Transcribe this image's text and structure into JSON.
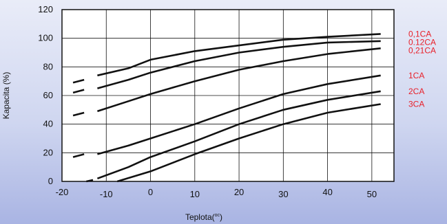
{
  "chart_data": {
    "type": "line",
    "xlabel": "Teplota(",
    "xlabel_sup": "oc",
    "xlabel_close": ")",
    "ylabel": "Kapacita (%)",
    "xlim": [
      -20,
      55
    ],
    "ylim": [
      0,
      120
    ],
    "x_ticks": [
      -20,
      -10,
      0,
      10,
      20,
      30,
      40,
      50
    ],
    "y_ticks": [
      0,
      20,
      40,
      60,
      80,
      100,
      120
    ],
    "grid": true,
    "label_color": "#e8202a",
    "line_color": "#111111",
    "series": [
      {
        "name": "0,1CA",
        "dashed": [
          [
            -17.5,
            69
          ],
          [
            -15,
            71
          ]
        ],
        "points": [
          [
            -12,
            74
          ],
          [
            -5,
            79
          ],
          [
            0,
            85
          ],
          [
            10,
            91
          ],
          [
            20,
            95
          ],
          [
            30,
            99
          ],
          [
            40,
            101
          ],
          [
            52,
            103
          ]
        ]
      },
      {
        "name": "0.12CA",
        "dashed": [
          [
            -17.5,
            62
          ],
          [
            -15,
            64
          ]
        ],
        "points": [
          [
            -12,
            65
          ],
          [
            -5,
            71
          ],
          [
            0,
            76
          ],
          [
            10,
            84
          ],
          [
            20,
            90
          ],
          [
            30,
            94
          ],
          [
            40,
            97
          ],
          [
            52,
            98
          ]
        ]
      },
      {
        "name": "0,21CA",
        "dashed": [
          [
            -17.5,
            46
          ],
          [
            -15,
            48
          ]
        ],
        "points": [
          [
            -12,
            49
          ],
          [
            -5,
            56
          ],
          [
            0,
            61
          ],
          [
            10,
            70
          ],
          [
            20,
            78
          ],
          [
            30,
            84
          ],
          [
            40,
            89
          ],
          [
            52,
            93
          ]
        ]
      },
      {
        "name": "1CA",
        "dashed": [
          [
            -17.5,
            17
          ],
          [
            -15,
            19
          ]
        ],
        "points": [
          [
            -12,
            19
          ],
          [
            -5,
            25
          ],
          [
            0,
            30
          ],
          [
            10,
            40
          ],
          [
            20,
            51
          ],
          [
            30,
            61
          ],
          [
            40,
            68
          ],
          [
            52,
            74
          ]
        ]
      },
      {
        "name": "2CA",
        "dashed": [
          [
            -14.5,
            0
          ],
          [
            -13,
            1
          ]
        ],
        "points": [
          [
            -12,
            2
          ],
          [
            -5,
            10
          ],
          [
            0,
            17
          ],
          [
            10,
            28
          ],
          [
            20,
            40
          ],
          [
            30,
            50
          ],
          [
            40,
            57
          ],
          [
            52,
            63
          ]
        ]
      },
      {
        "name": "3CA",
        "dashed": [],
        "points": [
          [
            -7.5,
            -1
          ],
          [
            0,
            7
          ],
          [
            10,
            19
          ],
          [
            20,
            30
          ],
          [
            30,
            40
          ],
          [
            40,
            48
          ],
          [
            52,
            54
          ]
        ]
      }
    ]
  }
}
